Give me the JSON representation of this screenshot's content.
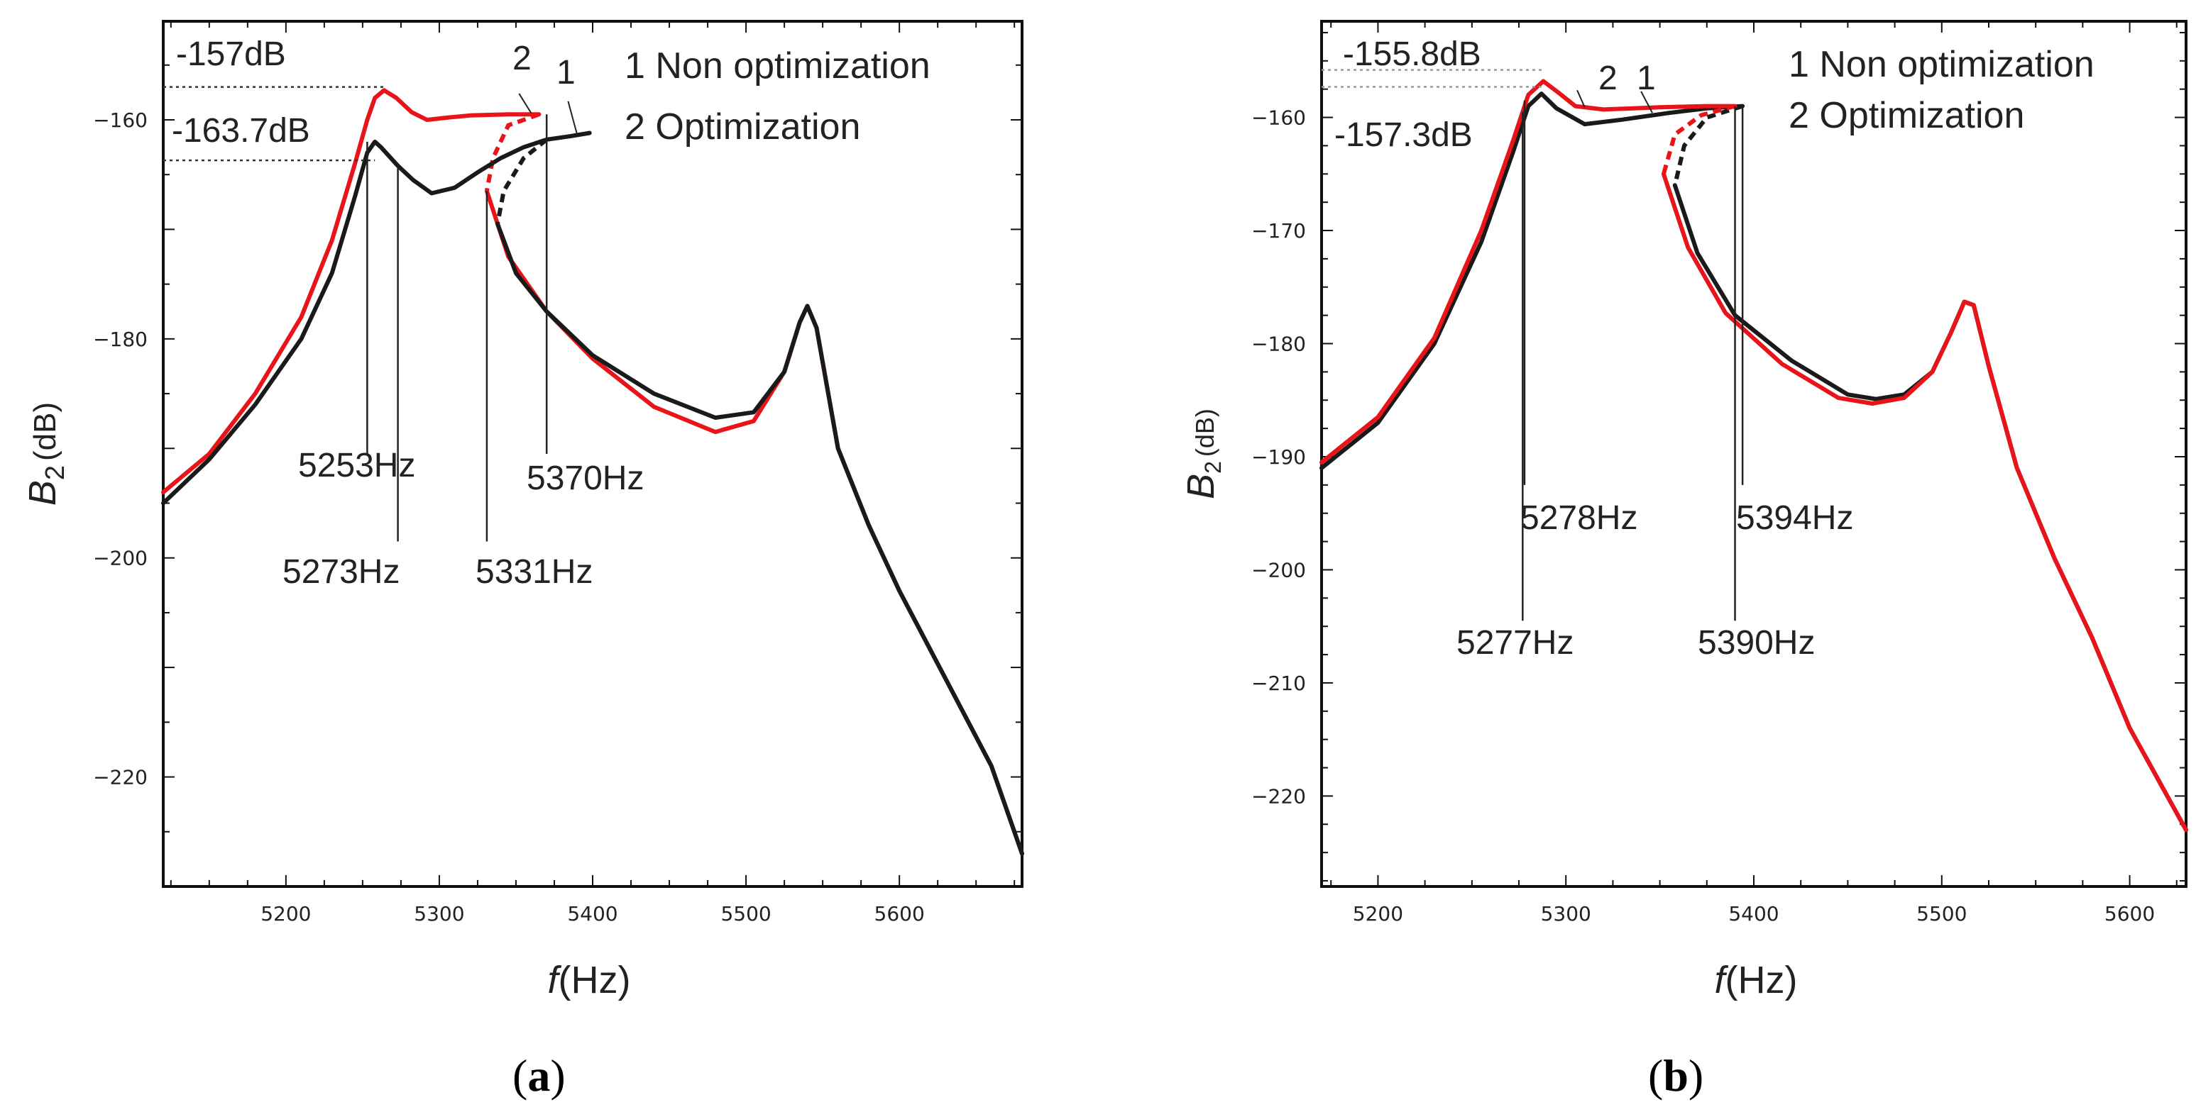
{
  "colors": {
    "red": "#e8141a",
    "black": "#1a1a1a",
    "guide_a": "#333333",
    "guide_b": "#999999"
  },
  "chart_data": [
    {
      "panel": "a",
      "panel_label": {
        "open": "(",
        "letter": "a",
        "close": ")"
      },
      "type": "line",
      "title": "",
      "xlabel": {
        "italic": "f",
        "rest": "(Hz)"
      },
      "ylabel": {
        "base": "B",
        "sub": "2",
        "unit": "(dB)"
      },
      "xlim": [
        5120,
        5680
      ],
      "ylim": [
        -230,
        -151
      ],
      "xticks": [
        5200,
        5300,
        5400,
        5500,
        5600
      ],
      "yticks": [
        -160,
        -180,
        -200,
        -220
      ],
      "legend": [
        "1 Non optimization",
        "2 Optimization"
      ],
      "legend_position": "top-right",
      "series": [
        {
          "name": "1 Non optimization",
          "color_key": "black",
          "upper": [
            [
              5120,
              -195
            ],
            [
              5150,
              -191
            ],
            [
              5180,
              -186
            ],
            [
              5210,
              -180
            ],
            [
              5230,
              -174
            ],
            [
              5245,
              -167
            ],
            [
              5253,
              -163
            ],
            [
              5258,
              -162
            ],
            [
              5262,
              -162.5
            ],
            [
              5273,
              -164.2
            ],
            [
              5283,
              -165.5
            ],
            [
              5295,
              -166.7
            ],
            [
              5310,
              -166.2
            ],
            [
              5325,
              -164.8
            ],
            [
              5340,
              -163.5
            ],
            [
              5355,
              -162.5
            ],
            [
              5370,
              -161.8
            ],
            [
              5385,
              -161.5
            ],
            [
              5398,
              -161.2
            ]
          ],
          "unstable": [
            [
              5370,
              -161.8
            ],
            [
              5355,
              -163.5
            ],
            [
              5342,
              -166.5
            ],
            [
              5338,
              -169.5
            ]
          ],
          "lower": [
            [
              5338,
              -169.5
            ],
            [
              5350,
              -174
            ],
            [
              5370,
              -177.5
            ],
            [
              5400,
              -181.5
            ],
            [
              5440,
              -185
            ],
            [
              5480,
              -187.2
            ],
            [
              5505,
              -186.7
            ],
            [
              5525,
              -183
            ],
            [
              5535,
              -178.5
            ],
            [
              5540,
              -177
            ],
            [
              5546,
              -179
            ],
            [
              5560,
              -190
            ],
            [
              5580,
              -197
            ],
            [
              5600,
              -203
            ],
            [
              5630,
              -211
            ],
            [
              5660,
              -219
            ],
            [
              5680,
              -227
            ]
          ]
        },
        {
          "name": "2 Optimization",
          "color_key": "red",
          "upper": [
            [
              5120,
              -194
            ],
            [
              5150,
              -190.5
            ],
            [
              5180,
              -185
            ],
            [
              5210,
              -178
            ],
            [
              5230,
              -171
            ],
            [
              5245,
              -164
            ],
            [
              5253,
              -160
            ],
            [
              5258,
              -158
            ],
            [
              5264,
              -157.3
            ],
            [
              5272,
              -158
            ],
            [
              5282,
              -159.3
            ],
            [
              5292,
              -160
            ],
            [
              5305,
              -159.8
            ],
            [
              5320,
              -159.6
            ],
            [
              5345,
              -159.5
            ],
            [
              5365,
              -159.5
            ]
          ],
          "unstable": [
            [
              5365,
              -159.5
            ],
            [
              5345,
              -160.5
            ],
            [
              5335,
              -163.5
            ],
            [
              5331,
              -166.5
            ]
          ],
          "lower": [
            [
              5331,
              -166.5
            ],
            [
              5345,
              -172.5
            ],
            [
              5370,
              -177.5
            ],
            [
              5400,
              -181.8
            ],
            [
              5440,
              -186.2
            ],
            [
              5480,
              -188.5
            ],
            [
              5505,
              -187.5
            ],
            [
              5525,
              -183
            ],
            [
              5535,
              -178.5
            ],
            [
              5540,
              -177
            ],
            [
              5546,
              -179
            ],
            [
              5560,
              -190
            ],
            [
              5580,
              -197
            ],
            [
              5600,
              -203
            ],
            [
              5630,
              -211
            ],
            [
              5660,
              -219
            ],
            [
              5680,
              -227
            ]
          ]
        }
      ],
      "annotations": {
        "db_top": "-157dB",
        "db_top_value": -157,
        "db_bottom": "-163.7dB",
        "db_bottom_value": -163.7,
        "freqs": [
          {
            "label": "5253Hz",
            "x": 5253,
            "y_from": -162,
            "y_to": -190.5
          },
          {
            "label": "5273Hz",
            "x": 5273,
            "y_from": -164.2,
            "y_to": -198.5
          },
          {
            "label": "5331Hz",
            "x": 5331,
            "y_from": -166.5,
            "y_to": -198.5
          },
          {
            "label": "5370Hz",
            "x": 5370,
            "y_from": -159.5,
            "y_to": -190.5
          }
        ],
        "curve_tags": [
          "2",
          "1"
        ]
      }
    },
    {
      "panel": "b",
      "panel_label": {
        "open": "(",
        "letter": "b",
        "close": ")"
      },
      "type": "line",
      "title": "",
      "xlabel": {
        "italic": "f",
        "rest": "(Hz)"
      },
      "ylabel": {
        "base": "B",
        "sub": "2",
        "unit": "(dB)"
      },
      "xlim": [
        5170,
        5630
      ],
      "ylim": [
        -228,
        -151.5
      ],
      "xticks": [
        5200,
        5300,
        5400,
        5500,
        5600
      ],
      "yticks": [
        -160,
        -170,
        -180,
        -190,
        -200,
        -210,
        -220
      ],
      "legend": [
        "1 Non optimization",
        "2 Optimization"
      ],
      "legend_position": "top-right",
      "series": [
        {
          "name": "1 Non optimization",
          "color_key": "black",
          "upper": [
            [
              5170,
              -191
            ],
            [
              5200,
              -187
            ],
            [
              5230,
              -180
            ],
            [
              5255,
              -171
            ],
            [
              5272,
              -163
            ],
            [
              5280,
              -159
            ],
            [
              5287,
              -157.9
            ],
            [
              5295,
              -159.2
            ],
            [
              5310,
              -160.6
            ],
            [
              5330,
              -160.2
            ],
            [
              5355,
              -159.6
            ],
            [
              5375,
              -159.2
            ],
            [
              5394,
              -159
            ]
          ],
          "unstable": [
            [
              5394,
              -159
            ],
            [
              5375,
              -160
            ],
            [
              5363,
              -162.5
            ],
            [
              5358,
              -166
            ]
          ],
          "lower": [
            [
              5358,
              -166
            ],
            [
              5370,
              -172
            ],
            [
              5390,
              -177.5
            ],
            [
              5420,
              -181.5
            ],
            [
              5450,
              -184.5
            ],
            [
              5465,
              -184.9
            ],
            [
              5480,
              -184.5
            ],
            [
              5495,
              -182.5
            ],
            [
              5505,
              -179
            ],
            [
              5512,
              -176.3
            ],
            [
              5517,
              -176.6
            ],
            [
              5525,
              -182
            ],
            [
              5540,
              -191
            ],
            [
              5560,
              -199
            ],
            [
              5580,
              -206
            ],
            [
              5600,
              -214
            ],
            [
              5620,
              -220
            ],
            [
              5630,
              -223
            ]
          ]
        },
        {
          "name": "2 Optimization",
          "color_key": "red",
          "upper": [
            [
              5170,
              -190.5
            ],
            [
              5200,
              -186.5
            ],
            [
              5230,
              -179.5
            ],
            [
              5255,
              -170
            ],
            [
              5272,
              -162
            ],
            [
              5280,
              -158
            ],
            [
              5288,
              -156.8
            ],
            [
              5296,
              -157.8
            ],
            [
              5305,
              -159
            ],
            [
              5320,
              -159.3
            ],
            [
              5350,
              -159.1
            ],
            [
              5375,
              -159
            ],
            [
              5390,
              -159
            ]
          ],
          "unstable": [
            [
              5390,
              -159
            ],
            [
              5372,
              -159.8
            ],
            [
              5358,
              -161.5
            ],
            [
              5352,
              -165
            ]
          ],
          "lower": [
            [
              5352,
              -165
            ],
            [
              5365,
              -171.5
            ],
            [
              5385,
              -177.3
            ],
            [
              5415,
              -181.8
            ],
            [
              5445,
              -184.8
            ],
            [
              5463,
              -185.3
            ],
            [
              5480,
              -184.8
            ],
            [
              5495,
              -182.5
            ],
            [
              5505,
              -179
            ],
            [
              5512,
              -176.3
            ],
            [
              5517,
              -176.6
            ],
            [
              5525,
              -182
            ],
            [
              5540,
              -191
            ],
            [
              5560,
              -199
            ],
            [
              5580,
              -206
            ],
            [
              5600,
              -214
            ],
            [
              5620,
              -220
            ],
            [
              5630,
              -223
            ]
          ]
        }
      ],
      "annotations": {
        "db_top": "-155.8dB",
        "db_top_value": -155.8,
        "db_bottom": "-157.3dB",
        "db_bottom_value": -157.3,
        "freqs": [
          {
            "label": "5277Hz",
            "x": 5277,
            "y_from": -159.5,
            "y_to": -204.5
          },
          {
            "label": "5278Hz",
            "x": 5278,
            "y_from": -158.5,
            "y_to": -192.5
          },
          {
            "label": "5394Hz",
            "x": 5394,
            "y_from": -159,
            "y_to": -192.5
          },
          {
            "label": "5390Hz",
            "x": 5390,
            "y_from": -159,
            "y_to": -204.5
          }
        ],
        "curve_tags": [
          "2",
          "1"
        ]
      }
    }
  ]
}
